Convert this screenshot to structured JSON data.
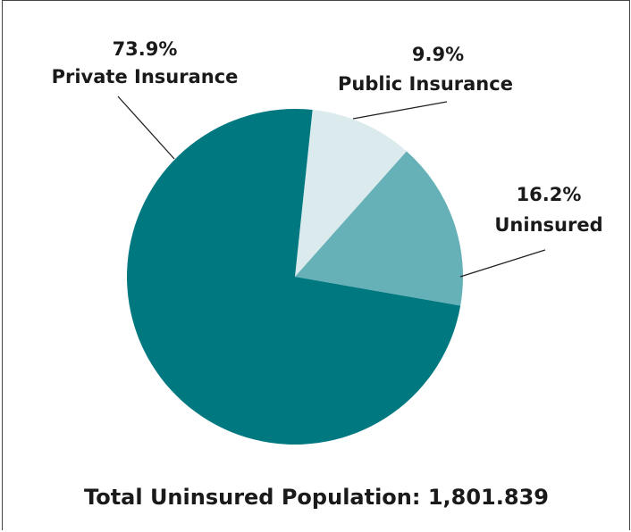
{
  "chart_data": {
    "type": "pie",
    "title": "",
    "slices": [
      {
        "label": "Private Insurance",
        "value": 73.9,
        "value_label": "73.9%",
        "color": "#007880"
      },
      {
        "label": "Public Insurance",
        "value": 9.9,
        "value_label": "9.9%",
        "color": "#daeaed"
      },
      {
        "label": "Uninsured",
        "value": 16.2,
        "value_label": "16.2%",
        "color": "#66b0b8"
      }
    ],
    "footer": "Total Uninsured Population:  1,801.839"
  }
}
